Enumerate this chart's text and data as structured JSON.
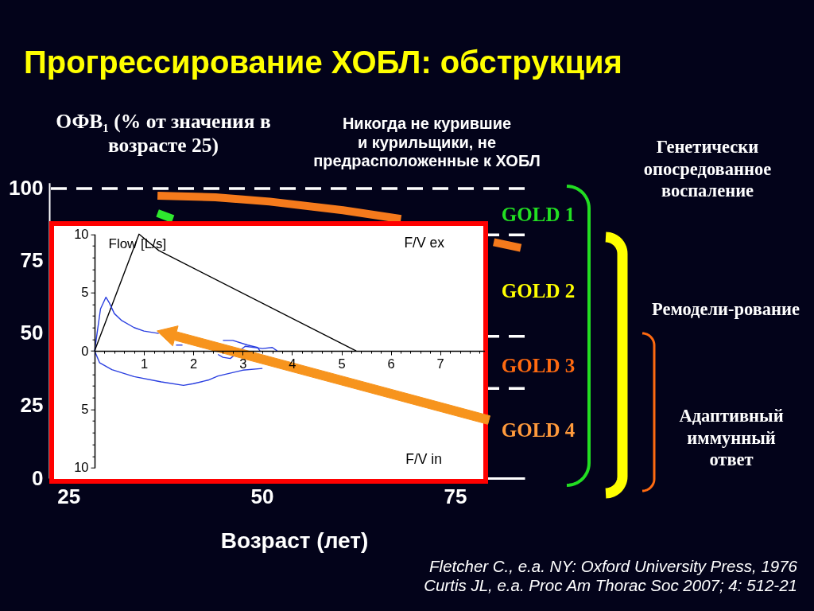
{
  "chart_data": [
    {
      "type": "line",
      "title": "Прогрессирование ХОБЛ: обструкция",
      "xlabel": "Возраст (лет)",
      "ylabel": "ОФВ₁ (% от значения в\nвозрасте 25)",
      "xlim": [
        22.5,
        84
      ],
      "xticks": [
        25,
        50,
        75
      ],
      "ylim": [
        0,
        102
      ],
      "yticks": [
        0,
        25,
        50,
        75,
        100
      ],
      "series": [
        {
          "color": "#f57a1c",
          "x": [
            36.5,
            44,
            51,
            60.5,
            68,
            74,
            80,
            83.5
          ],
          "values": [
            97.5,
            97,
            95.5,
            92.5,
            89.5,
            null,
            81.5,
            79.5
          ]
        },
        {
          "color": "#2ee82e",
          "x": [
            36.5,
            38.5
          ],
          "values": [
            91.5,
            89.5
          ]
        }
      ],
      "ref_lines": [
        {
          "axis": "y",
          "value": 100,
          "color": "#ffffff",
          "line_style": "dashed"
        },
        {
          "axis": "y",
          "value": 84,
          "color": "#ffffff",
          "line_style": "dashed"
        },
        {
          "axis": "y",
          "value": 49,
          "color": "#ffffff",
          "line_style": "dashed"
        },
        {
          "axis": "y",
          "value": 31,
          "color": "#ffffff",
          "line_style": "dashed"
        }
      ],
      "annotations": [
        "Никогда не курившие\nи курильщики, не\nпредрасположенные к ХОБЛ",
        "GOLD 1",
        "GOLD 2",
        "GOLD 3",
        "GOLD 4",
        "Генетически\nопосредованное\nвоспаление",
        "Ремодели-рование",
        "Адаптивный\nиммунный\nответ",
        "Fletcher C., e.a. NY: Oxford University Press, 1976",
        "Curtis JL, e.a. Proc Am Thorac Soc 2007; 4: 512-21"
      ]
    },
    {
      "type": "line",
      "ylabel": "Flow [L/s]",
      "xlim": [
        0,
        7.9
      ],
      "xticks": [
        {
          "value": 0,
          "label": null
        },
        {
          "value": 0.2,
          "label": null
        },
        {
          "value": 0.4,
          "label": null
        },
        {
          "value": 0.6,
          "label": null
        },
        {
          "value": 0.8,
          "label": null
        },
        1,
        {
          "value": 1.2,
          "label": null
        },
        {
          "value": 1.4,
          "label": null
        },
        {
          "value": 1.6,
          "label": null
        },
        {
          "value": 1.8,
          "label": null
        },
        2,
        {
          "value": 2.2,
          "label": null
        },
        {
          "value": 2.4,
          "label": null
        },
        {
          "value": 2.6,
          "label": null
        },
        {
          "value": 2.8,
          "label": null
        },
        3,
        {
          "value": 3.2,
          "label": null
        },
        {
          "value": 3.4,
          "label": null
        },
        {
          "value": 3.6,
          "label": null
        },
        {
          "value": 3.8,
          "label": null
        },
        4,
        {
          "value": 4.2,
          "label": null
        },
        {
          "value": 4.4,
          "label": null
        },
        {
          "value": 4.6,
          "label": null
        },
        {
          "value": 4.8,
          "label": null
        },
        5,
        {
          "value": 5.2,
          "label": null
        },
        {
          "value": 5.4,
          "label": null
        },
        {
          "value": 5.6,
          "label": null
        },
        {
          "value": 5.8,
          "label": null
        },
        6,
        {
          "value": 6.2,
          "label": null
        },
        {
          "value": 6.4,
          "label": null
        },
        {
          "value": 6.6,
          "label": null
        },
        {
          "value": 6.8,
          "label": null
        },
        7,
        {
          "value": 7.2,
          "label": null
        },
        {
          "value": 7.4,
          "label": null
        },
        {
          "value": 7.6,
          "label": null
        },
        {
          "value": 7.8,
          "label": null
        }
      ],
      "ylim": [
        -10,
        10
      ],
      "yticks": [
        {
          "value": -10,
          "label": "10"
        },
        {
          "value": -9,
          "label": null
        },
        {
          "value": -8,
          "label": null
        },
        {
          "value": -7,
          "label": null
        },
        {
          "value": -6,
          "label": null
        },
        {
          "value": -5,
          "label": "5"
        },
        {
          "value": -4,
          "label": null
        },
        {
          "value": -3,
          "label": null
        },
        {
          "value": -2,
          "label": null
        },
        {
          "value": -1,
          "label": null
        },
        0,
        {
          "value": 1,
          "label": null
        },
        {
          "value": 2,
          "label": null
        },
        {
          "value": 3,
          "label": null
        },
        {
          "value": 4,
          "label": null
        },
        5,
        {
          "value": 6,
          "label": null
        },
        {
          "value": 7,
          "label": null
        },
        {
          "value": 8,
          "label": null
        },
        {
          "value": 9,
          "label": null
        },
        10
      ],
      "series": [
        {
          "color": "#000000",
          "x": [
            0,
            0.9,
            1.3,
            5.3
          ],
          "values": [
            0,
            10,
            8.6,
            0
          ]
        },
        {
          "color": "#2a3fe0",
          "x": [
            0,
            0.05,
            0.12,
            0.23,
            0.3,
            0.4,
            0.55,
            0.8,
            1.0,
            1.3,
            1.55,
            1.65,
            1.78,
            1.82,
            2.1,
            2.5,
            2.6,
            2.8,
            3.1,
            3.3,
            3.35
          ],
          "values": [
            0,
            1.5,
            3.6,
            4.6,
            4.1,
            3.2,
            2.6,
            2.0,
            1.7,
            1.5,
            null,
            0.5,
            0.5,
            null,
            null,
            null,
            0.9,
            0.9,
            0.5,
            0.3,
            0
          ]
        },
        {
          "color": "#2a3fe0",
          "x": [
            2.5,
            2.6,
            2.75,
            3.05,
            3.4,
            3.6,
            3.7
          ],
          "values": [
            -0.3,
            -0.55,
            -0.65,
            0.4,
            0.2,
            0.3,
            0
          ]
        },
        {
          "color": "#2a3fe0",
          "x": [
            0,
            0.1,
            0.35,
            0.8,
            1.35,
            1.8,
            2.0,
            2.3,
            2.5,
            3.0,
            3.4
          ],
          "values": [
            0,
            -1.0,
            -1.6,
            -2.2,
            -2.65,
            -2.95,
            -2.8,
            -2.5,
            -2.15,
            -1.65,
            -1.5
          ]
        }
      ],
      "annotations": [
        "F/V ex",
        "F/V in"
      ]
    }
  ]
}
